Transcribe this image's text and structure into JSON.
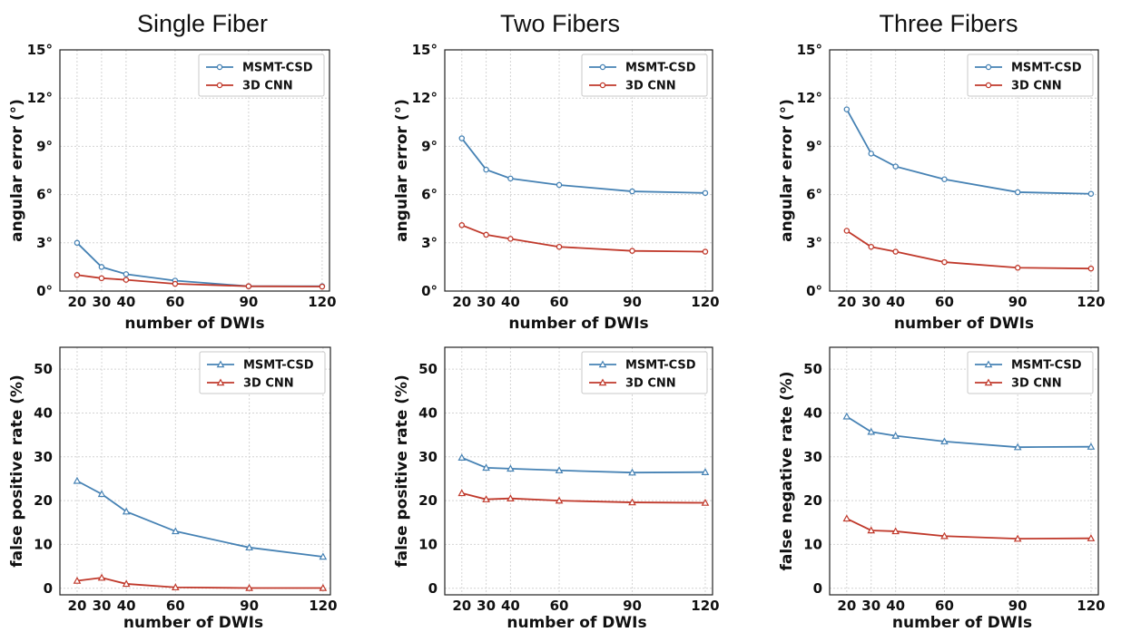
{
  "figure": {
    "column_titles": [
      "Single Fiber",
      "Two Fibers",
      "Three Fibers"
    ]
  },
  "chart_data": [
    {
      "type": "line",
      "title": "Single Fiber",
      "xlabel": "number of DWIs",
      "ylabel": "angular error (°)",
      "x": [
        20,
        30,
        40,
        60,
        90,
        120
      ],
      "xticks": [
        "20",
        "30",
        "40",
        "60",
        "90",
        "120"
      ],
      "ylim": [
        0,
        15
      ],
      "yticks": [
        "0°",
        "3°",
        "6°",
        "9°",
        "12°",
        "15°"
      ],
      "series": [
        {
          "name": "MSMT-CSD",
          "color": "#4682b4",
          "marker": "circle",
          "values": [
            3.0,
            1.5,
            1.05,
            0.65,
            0.3,
            0.3
          ]
        },
        {
          "name": "3D CNN",
          "color": "#c0392b",
          "marker": "circle",
          "values": [
            1.0,
            0.8,
            0.7,
            0.45,
            0.3,
            0.28
          ]
        }
      ],
      "grid": true,
      "legend": "top-right"
    },
    {
      "type": "line",
      "title": "Two Fibers",
      "xlabel": "number of DWIs",
      "ylabel": "angular error (°)",
      "x": [
        20,
        30,
        40,
        60,
        90,
        120
      ],
      "xticks": [
        "20",
        "30",
        "40",
        "60",
        "90",
        "120"
      ],
      "ylim": [
        0,
        15
      ],
      "yticks": [
        "0°",
        "3°",
        "6°",
        "9°",
        "12°",
        "15°"
      ],
      "series": [
        {
          "name": "MSMT-CSD",
          "color": "#4682b4",
          "marker": "circle",
          "values": [
            9.5,
            7.55,
            7.0,
            6.6,
            6.2,
            6.1
          ]
        },
        {
          "name": "3D CNN",
          "color": "#c0392b",
          "marker": "circle",
          "values": [
            4.1,
            3.5,
            3.25,
            2.75,
            2.5,
            2.45
          ]
        }
      ],
      "grid": true,
      "legend": "top-right"
    },
    {
      "type": "line",
      "title": "Three Fibers",
      "xlabel": "number of DWIs",
      "ylabel": "angular error (°)",
      "x": [
        20,
        30,
        40,
        60,
        90,
        120
      ],
      "xticks": [
        "20",
        "30",
        "40",
        "60",
        "90",
        "120"
      ],
      "ylim": [
        0,
        15
      ],
      "yticks": [
        "0°",
        "3°",
        "6°",
        "9°",
        "12°",
        "15°"
      ],
      "series": [
        {
          "name": "MSMT-CSD",
          "color": "#4682b4",
          "marker": "circle",
          "values": [
            11.3,
            8.55,
            7.75,
            6.95,
            6.15,
            6.05
          ]
        },
        {
          "name": "3D CNN",
          "color": "#c0392b",
          "marker": "circle",
          "values": [
            3.75,
            2.75,
            2.45,
            1.8,
            1.45,
            1.4
          ]
        }
      ],
      "grid": true,
      "legend": "top-right"
    },
    {
      "type": "line",
      "xlabel": "number of DWIs",
      "ylabel": "false positive rate (%)",
      "x": [
        20,
        30,
        40,
        60,
        90,
        120
      ],
      "xticks": [
        "20",
        "30",
        "40",
        "60",
        "90",
        "120"
      ],
      "ylim": [
        -1.5,
        55
      ],
      "yticks": [
        "0",
        "10",
        "20",
        "30",
        "40",
        "50"
      ],
      "series": [
        {
          "name": "MSMT-CSD",
          "color": "#4682b4",
          "marker": "triangle",
          "values": [
            24.5,
            21.5,
            17.5,
            13.0,
            9.3,
            7.2
          ]
        },
        {
          "name": "3D CNN",
          "color": "#c0392b",
          "marker": "triangle",
          "values": [
            1.7,
            2.4,
            1.0,
            0.2,
            0.05,
            0.05
          ]
        }
      ],
      "grid": true,
      "legend": "top-right"
    },
    {
      "type": "line",
      "xlabel": "number of DWIs",
      "ylabel": "false positive rate (%)",
      "x": [
        20,
        30,
        40,
        60,
        90,
        120
      ],
      "xticks": [
        "20",
        "30",
        "40",
        "60",
        "90",
        "120"
      ],
      "ylim": [
        -1.5,
        55
      ],
      "yticks": [
        "0",
        "10",
        "20",
        "30",
        "40",
        "50"
      ],
      "series": [
        {
          "name": "MSMT-CSD",
          "color": "#4682b4",
          "marker": "triangle",
          "values": [
            29.8,
            27.5,
            27.3,
            26.9,
            26.4,
            26.5
          ]
        },
        {
          "name": "3D CNN",
          "color": "#c0392b",
          "marker": "triangle",
          "values": [
            21.7,
            20.3,
            20.5,
            20.0,
            19.6,
            19.5
          ]
        }
      ],
      "grid": true,
      "legend": "top-right"
    },
    {
      "type": "line",
      "xlabel": "number of DWIs",
      "ylabel": "false negative rate (%)",
      "x": [
        20,
        30,
        40,
        60,
        90,
        120
      ],
      "xticks": [
        "20",
        "30",
        "40",
        "60",
        "90",
        "120"
      ],
      "ylim": [
        -1.5,
        55
      ],
      "yticks": [
        "0",
        "10",
        "20",
        "30",
        "40",
        "50"
      ],
      "series": [
        {
          "name": "MSMT-CSD",
          "color": "#4682b4",
          "marker": "triangle",
          "values": [
            39.2,
            35.7,
            34.8,
            33.5,
            32.2,
            32.3
          ]
        },
        {
          "name": "3D CNN",
          "color": "#c0392b",
          "marker": "triangle",
          "values": [
            15.9,
            13.2,
            13.0,
            11.9,
            11.3,
            11.4
          ]
        }
      ],
      "grid": true,
      "legend": "top-right"
    }
  ]
}
